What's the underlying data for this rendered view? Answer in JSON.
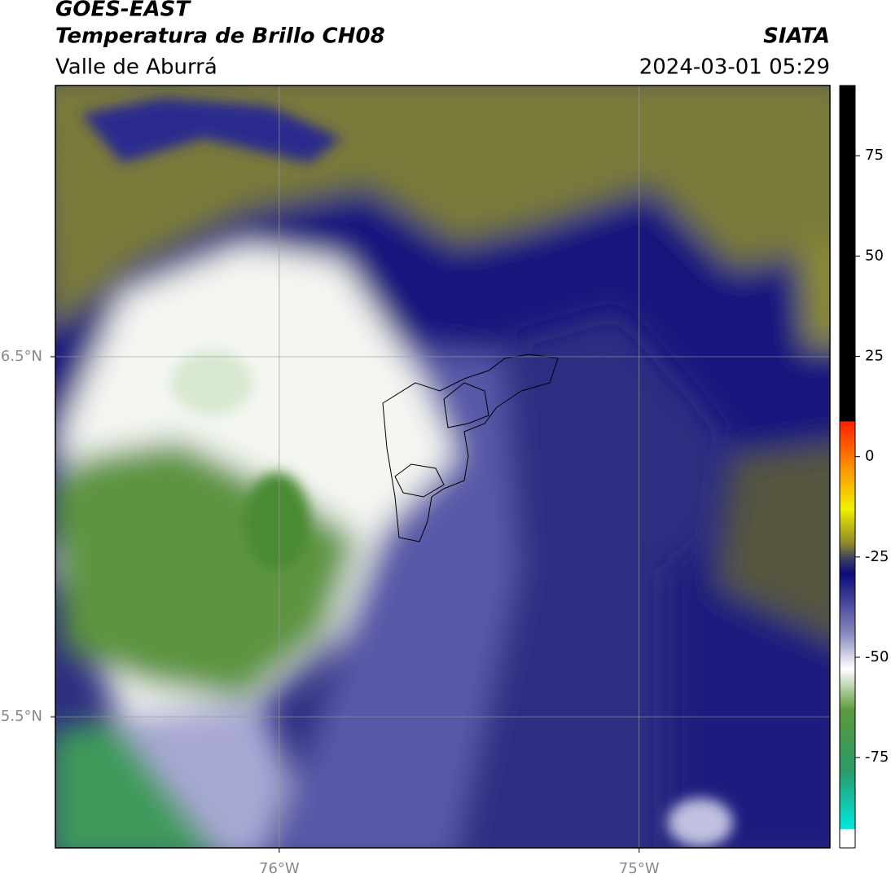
{
  "header": {
    "title": "GOES-EAST",
    "subtitle": "Temperatura de Brillo CH08",
    "region": "Valle de Aburrá",
    "source": "SIATA",
    "datetime": "2024-03-01 05:29"
  },
  "map": {
    "xlim": [
      -76.622,
      -74.47
    ],
    "ylim": [
      5.136,
      7.253
    ],
    "xticks": [
      {
        "value": -76,
        "label": "76°W"
      },
      {
        "value": -75,
        "label": "75°W"
      }
    ],
    "yticks": [
      {
        "value": 6.5,
        "label": "6.5°N"
      },
      {
        "value": 5.5,
        "label": "5.5°N"
      }
    ]
  },
  "colorbar": {
    "range": [
      -97.5,
      92.5
    ],
    "ticks": [
      75,
      50,
      25,
      0,
      -25,
      -50,
      -75
    ]
  }
}
